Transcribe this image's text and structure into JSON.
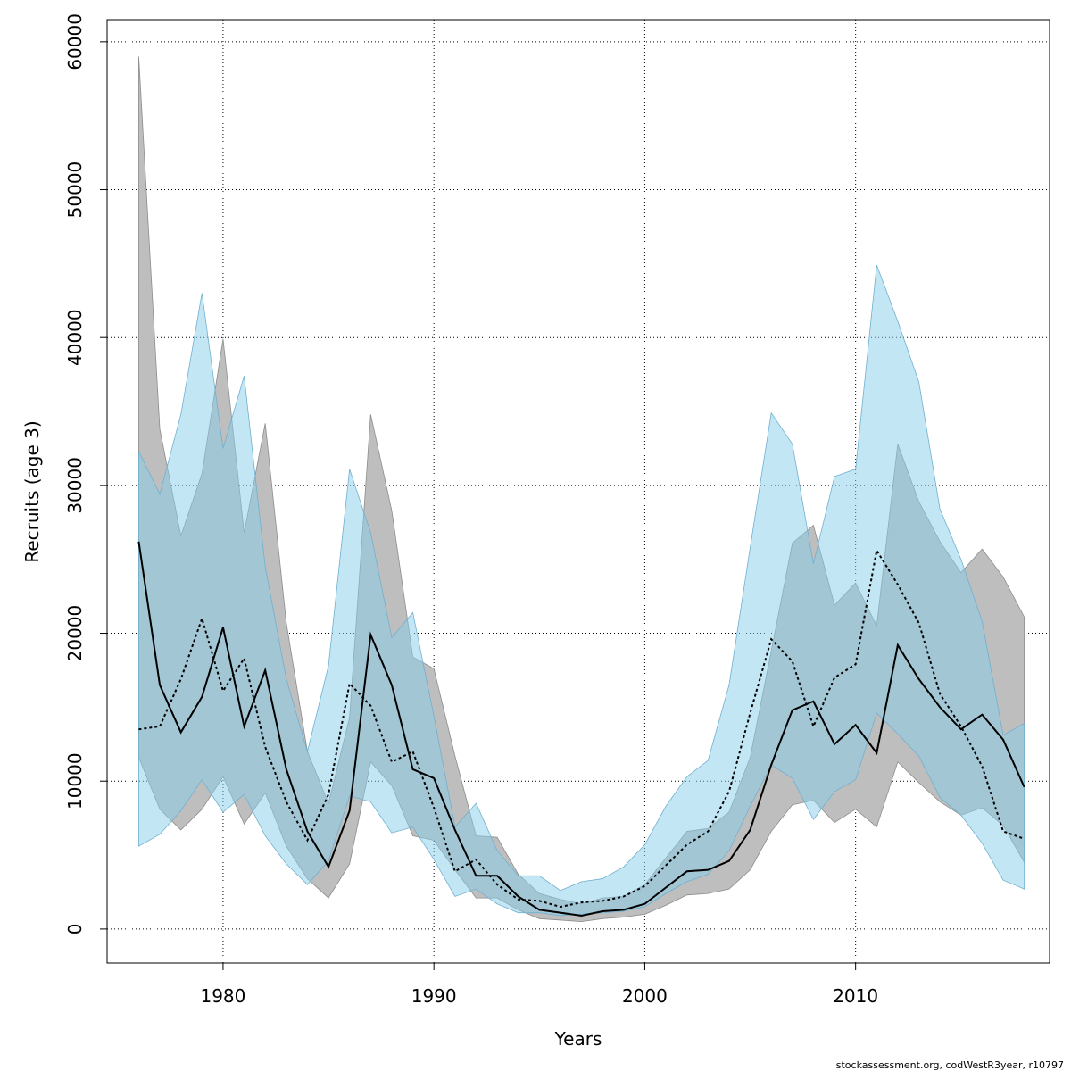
{
  "chart_data": {
    "type": "area",
    "xlabel": "Years",
    "ylabel": "Recruits (age 3)",
    "footer": "stockassessment.org, codWestR3year, r10797",
    "xlim": [
      1974.5,
      2019.2
    ],
    "ylim": [
      -2300,
      61500
    ],
    "xticks": [
      1980,
      1990,
      2000,
      2010
    ],
    "yticks": [
      0,
      10000,
      20000,
      30000,
      40000,
      50000,
      60000
    ],
    "grid": true,
    "colors": {
      "grey_band": "#bebebe",
      "blue_band": "#87ceeb",
      "estimate_line": "#000000",
      "compare_line": "#000000"
    },
    "x": [
      1976,
      1977,
      1978,
      1979,
      1980,
      1981,
      1982,
      1983,
      1984,
      1985,
      1986,
      1987,
      1988,
      1989,
      1990,
      1991,
      1992,
      1993,
      1994,
      1995,
      1996,
      1997,
      1998,
      1999,
      2000,
      2001,
      2002,
      2003,
      2004,
      2005,
      2006,
      2007,
      2008,
      2009,
      2010,
      2011,
      2012,
      2013,
      2014,
      2015,
      2016,
      2017,
      2018
    ],
    "series": [
      {
        "style": "grey band with solid line",
        "values": [
          26200,
          16500,
          13300,
          15700,
          20400,
          13700,
          17500,
          10800,
          6600,
          4200,
          8000,
          19900,
          16500,
          10800,
          10200,
          6700,
          3600,
          3600,
          2200,
          1300,
          1100,
          900,
          1200,
          1300,
          1700,
          2800,
          3900,
          4000,
          4600,
          6700,
          11100,
          14800,
          15400,
          12500,
          13800,
          11900,
          19200,
          16900,
          15000,
          13500,
          14500,
          12800,
          9600
        ],
        "lower": [
          11600,
          8100,
          6700,
          8100,
          10300,
          7100,
          9200,
          5600,
          3400,
          2100,
          4400,
          11300,
          9700,
          6300,
          6000,
          4000,
          2100,
          2100,
          1300,
          700,
          600,
          500,
          700,
          800,
          1000,
          1600,
          2300,
          2400,
          2700,
          4000,
          6600,
          8400,
          8700,
          7200,
          8100,
          6900,
          11300,
          9900,
          8600,
          7700,
          8200,
          7000,
          4500
        ],
        "upper": [
          59000,
          33800,
          26600,
          30800,
          39900,
          26800,
          34200,
          20700,
          12000,
          8500,
          14300,
          34800,
          28300,
          18400,
          17600,
          11700,
          6300,
          6200,
          3700,
          2400,
          2000,
          1700,
          2100,
          2200,
          3000,
          4800,
          6600,
          6800,
          7900,
          11600,
          18800,
          26100,
          27300,
          21900,
          23400,
          20500,
          32800,
          28900,
          26200,
          24100,
          25700,
          23800,
          21100
        ]
      },
      {
        "style": "blue band with dotted line",
        "values": [
          13500,
          13700,
          16900,
          21000,
          16100,
          18300,
          12300,
          8600,
          6000,
          9100,
          16600,
          15100,
          11300,
          12000,
          8200,
          3900,
          4700,
          3000,
          2000,
          1900,
          1500,
          1800,
          1900,
          2200,
          2900,
          4300,
          5700,
          6600,
          9300,
          14600,
          19600,
          18100,
          13700,
          17000,
          17900,
          25600,
          23300,
          20700,
          15900,
          13700,
          11000,
          6600,
          6100
        ],
        "lower": [
          5600,
          6400,
          8000,
          10100,
          7900,
          9100,
          6300,
          4400,
          3000,
          4600,
          9000,
          8600,
          6500,
          6900,
          4700,
          2200,
          2700,
          1700,
          1100,
          1100,
          900,
          1000,
          1100,
          1200,
          1500,
          2400,
          3200,
          3700,
          5300,
          8300,
          11100,
          10200,
          7400,
          9300,
          10100,
          14600,
          13200,
          11700,
          8900,
          7700,
          5800,
          3300,
          2700
        ],
        "upper": [
          32300,
          29400,
          34800,
          43000,
          32500,
          37400,
          24500,
          16900,
          12000,
          17800,
          31100,
          26800,
          19700,
          21400,
          14400,
          6900,
          8500,
          5300,
          3600,
          3600,
          2600,
          3200,
          3400,
          4200,
          5700,
          8300,
          10300,
          11400,
          16500,
          25800,
          34900,
          32800,
          24700,
          30600,
          31100,
          44900,
          41100,
          37000,
          28400,
          25000,
          20800,
          13100,
          13900
        ]
      }
    ]
  }
}
